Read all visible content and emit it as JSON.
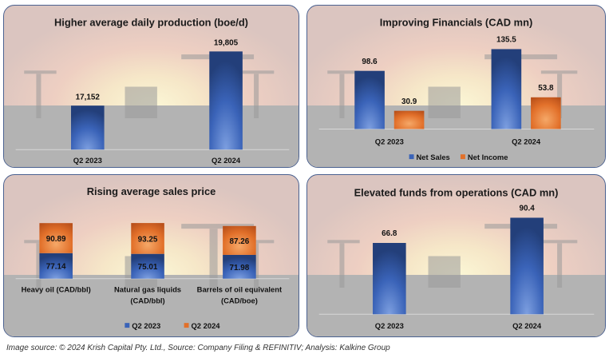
{
  "footer": "Image source: © 2024 Krish Capital Pty. Ltd., Source: Company Filing & REFINITIV; Analysis: Kalkine Group",
  "colors": {
    "blue": "#3a63b8",
    "blue_dark": "#233f7a",
    "blue_light": "#7d9fe0",
    "orange": "#e2702a",
    "orange_dark": "#b9501a",
    "orange_light": "#f5a868",
    "axis": "#d8d8d8"
  },
  "chart_data": [
    {
      "id": "production",
      "type": "bar",
      "title": "Higher average daily production (boe/d)",
      "categories": [
        "Q2 2023",
        "Q2 2024"
      ],
      "values": [
        17152,
        19805
      ],
      "labels": [
        "17,152",
        "19,805"
      ],
      "ylim": [
        15000,
        20500
      ],
      "xlabel": "",
      "ylabel": "",
      "grid": false,
      "legend": null
    },
    {
      "id": "financials",
      "type": "bar",
      "title": "Improving Financials (CAD mn)",
      "categories": [
        "Q2 2023",
        "Q2 2024"
      ],
      "series": [
        {
          "name": "Net Sales",
          "values": [
            98.6,
            135.5
          ],
          "labels": [
            "98.6",
            "135.5"
          ],
          "color": "blue"
        },
        {
          "name": "Net Income",
          "values": [
            30.9,
            53.8
          ],
          "labels": [
            "30.9",
            "53.8"
          ],
          "color": "orange"
        }
      ],
      "ylim": [
        0,
        150
      ],
      "grid": false,
      "legend": "bottom"
    },
    {
      "id": "sales_price",
      "type": "bar",
      "stacked": true,
      "title": "Rising average sales price",
      "categories": [
        "Heavy oil (CAD/bbl)",
        "Natural gas liquids (CAD/bbl)",
        "Barrels of oil equivalent (CAD/boe)"
      ],
      "category_lines": [
        [
          "Heavy oil (CAD/bbl)"
        ],
        [
          "Natural gas liquids",
          "(CAD/bbl)"
        ],
        [
          "Barrels of oil equivalent",
          "(CAD/boe)"
        ]
      ],
      "series": [
        {
          "name": "Q2 2023",
          "values": [
            77.14,
            75.01,
            71.98
          ],
          "labels": [
            "77.14",
            "75.01",
            "71.98"
          ],
          "color": "blue"
        },
        {
          "name": "Q2 2024",
          "values": [
            90.89,
            93.25,
            87.26
          ],
          "labels": [
            "90.89",
            "93.25",
            "87.26"
          ],
          "color": "orange"
        }
      ],
      "ylim": [
        0,
        175
      ],
      "grid": false,
      "legend": "bottom"
    },
    {
      "id": "ffo",
      "type": "bar",
      "title": "Elevated funds from operations (CAD mn)",
      "categories": [
        "Q2 2023",
        "Q2 2024"
      ],
      "values": [
        66.8,
        90.4
      ],
      "labels": [
        "66.8",
        "90.4"
      ],
      "ylim": [
        0,
        100
      ],
      "grid": false,
      "legend": null
    }
  ]
}
